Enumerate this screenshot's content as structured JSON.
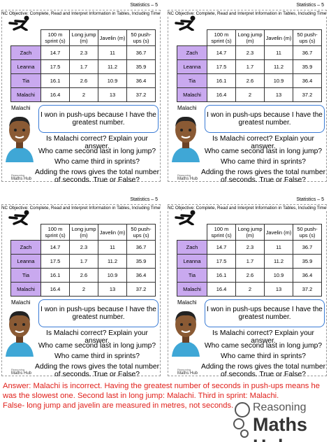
{
  "worksheet": {
    "header": "Statistics – 5",
    "objective": "NC Objective: Complete, Read and Interpret Information in Tables, Including Timetables",
    "table": {
      "columns": [
        "100 m sprint (s)",
        "Long jump (m)",
        "Javelin (m)",
        "50 push-ups (s)"
      ],
      "rows": [
        [
          "Zach",
          "14.7",
          "2.3",
          "11",
          "36.7"
        ],
        [
          "Leanna",
          "17.5",
          "1.7",
          "11.2",
          "35.9"
        ],
        [
          "Tia",
          "16.1",
          "2.6",
          "10.9",
          "36.4"
        ],
        [
          "Malachi",
          "16.4",
          "2",
          "13",
          "37.2"
        ]
      ]
    },
    "speaker": "Malachi",
    "speech": "I won in push-ups because I have the greatest number.",
    "questions": [
      "Is Malachi correct? Explain your answer.",
      "Who came second last in long jump?",
      "Who came third in sprints?",
      "Adding the rows gives the total number of seconds. True or False?"
    ],
    "logo": {
      "top": "Reasoning",
      "bottom": "Maths Hub"
    }
  },
  "answer": [
    "Answer: Malachi is incorrect. Having the greatest number of seconds in push-ups means he was the slowest one. Second last in long jump: Malachi. Third in sprint: Malachi.",
    "False- long jump and javelin are measured in metres, not seconds."
  ],
  "brand": {
    "top": "Reasoning",
    "bottom": "Maths Hub"
  }
}
